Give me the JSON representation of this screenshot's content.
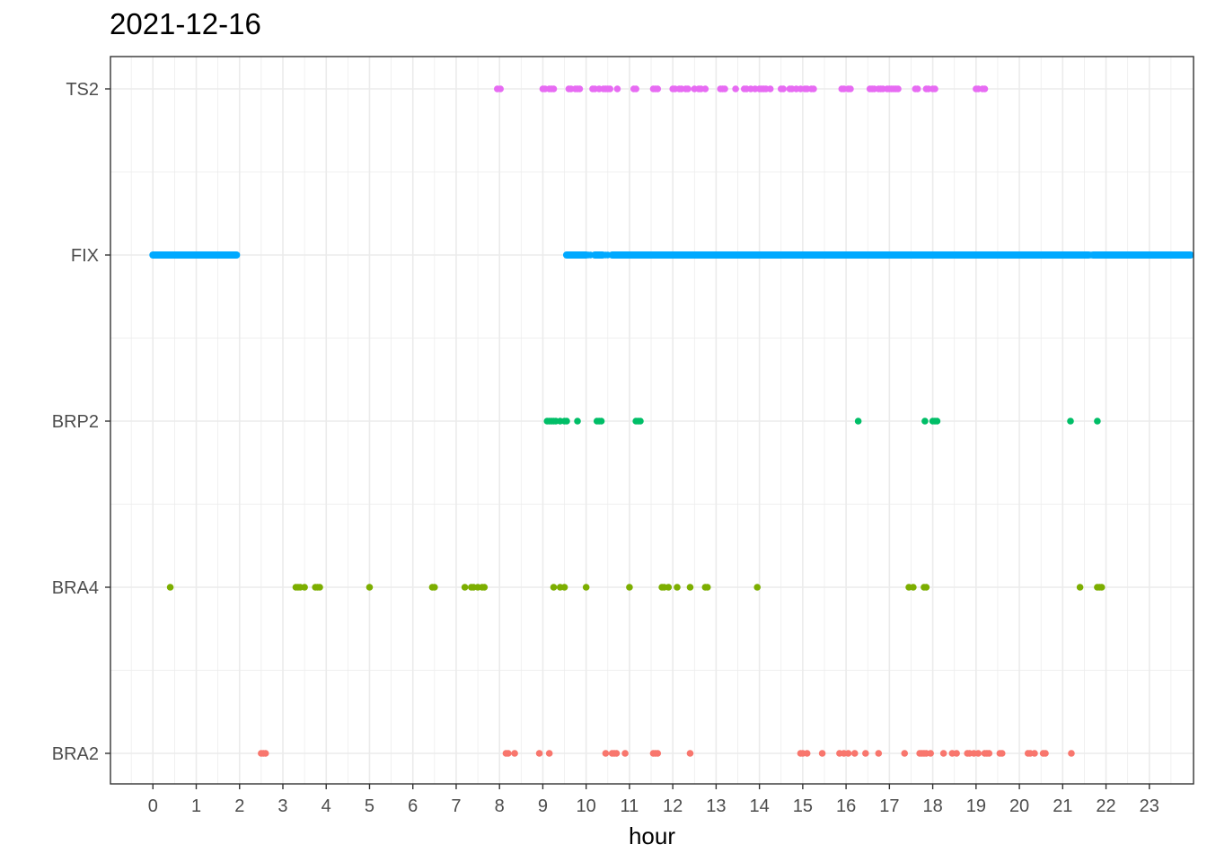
{
  "chart_data": {
    "type": "scatter",
    "title": "2021-12-16",
    "xlabel": "hour",
    "ylabel": "",
    "xlim": [
      -0.98,
      24.02
    ],
    "xticks": [
      "0",
      "1",
      "2",
      "3",
      "4",
      "5",
      "6",
      "7",
      "8",
      "9",
      "10",
      "11",
      "12",
      "13",
      "14",
      "15",
      "16",
      "17",
      "18",
      "19",
      "20",
      "21",
      "22",
      "23"
    ],
    "categories": [
      "BRA2",
      "BRA4",
      "BRP2",
      "FIX",
      "TS2"
    ],
    "grid": true,
    "legend": "none",
    "series": [
      {
        "category": "TS2",
        "color": "#E76BF3",
        "points": [
          7.95,
          8.02,
          9.0,
          9.05,
          9.15,
          9.2,
          9.25,
          9.6,
          9.65,
          9.75,
          9.8,
          9.85,
          10.15,
          10.2,
          10.3,
          10.4,
          10.45,
          10.5,
          10.55,
          10.72,
          11.1,
          11.15,
          11.55,
          11.6,
          11.65,
          12.0,
          12.05,
          12.15,
          12.2,
          12.3,
          12.35,
          12.5,
          12.6,
          12.65,
          12.75,
          13.1,
          13.15,
          13.2,
          13.45,
          13.65,
          13.7,
          13.8,
          13.9,
          14.0,
          14.05,
          14.1,
          14.15,
          14.25,
          14.5,
          14.55,
          14.7,
          14.75,
          14.85,
          14.95,
          15.05,
          15.1,
          15.2,
          15.25,
          15.9,
          15.95,
          16.05,
          16.1,
          16.55,
          16.6,
          16.65,
          16.75,
          16.8,
          16.85,
          16.95,
          17.0,
          17.05,
          17.1,
          17.15,
          17.2,
          17.6,
          17.65,
          17.85,
          17.9,
          18.0,
          18.05,
          19.0,
          19.05,
          19.15,
          19.2
        ]
      },
      {
        "category": "FIX",
        "color": "#00A9FF",
        "segments": [
          [
            0.0,
            1.93
          ],
          [
            9.55,
            10.0
          ],
          [
            10.2,
            10.38
          ],
          [
            10.6,
            21.6
          ],
          [
            21.7,
            23.95
          ]
        ],
        "points": [
          10.05,
          10.1,
          10.45,
          10.5,
          21.65
        ]
      },
      {
        "category": "BRP2",
        "color": "#00BE67",
        "points": [
          9.1,
          9.15,
          9.2,
          9.25,
          9.3,
          9.4,
          9.5,
          9.55,
          9.8,
          10.25,
          10.3,
          10.35,
          11.15,
          11.2,
          11.25,
          16.28,
          17.82,
          18.0,
          18.05,
          18.1,
          21.18,
          21.8
        ]
      },
      {
        "category": "BRA4",
        "color": "#7CAE00",
        "points": [
          0.4,
          3.3,
          3.35,
          3.4,
          3.5,
          3.75,
          3.8,
          3.85,
          5.0,
          6.45,
          6.5,
          7.2,
          7.35,
          7.4,
          7.5,
          7.6,
          7.65,
          9.25,
          9.4,
          9.5,
          10.0,
          11.0,
          11.75,
          11.8,
          11.9,
          12.1,
          12.4,
          12.75,
          12.8,
          13.95,
          17.45,
          17.55,
          17.8,
          17.85,
          21.4,
          21.8,
          21.85,
          21.9
        ]
      },
      {
        "category": "BRA2",
        "color": "#F8766D",
        "points": [
          2.5,
          2.55,
          2.6,
          8.15,
          8.2,
          8.35,
          8.92,
          9.15,
          10.45,
          10.6,
          10.65,
          10.7,
          10.9,
          11.55,
          11.6,
          11.65,
          12.4,
          14.95,
          15.0,
          15.1,
          15.45,
          15.85,
          15.95,
          16.05,
          16.2,
          16.45,
          16.75,
          17.35,
          17.7,
          17.75,
          17.8,
          17.85,
          17.95,
          18.25,
          18.45,
          18.55,
          18.8,
          18.85,
          18.95,
          19.05,
          19.2,
          19.25,
          19.3,
          19.55,
          19.6,
          20.2,
          20.25,
          20.35,
          20.55,
          20.6,
          21.2
        ]
      }
    ]
  }
}
